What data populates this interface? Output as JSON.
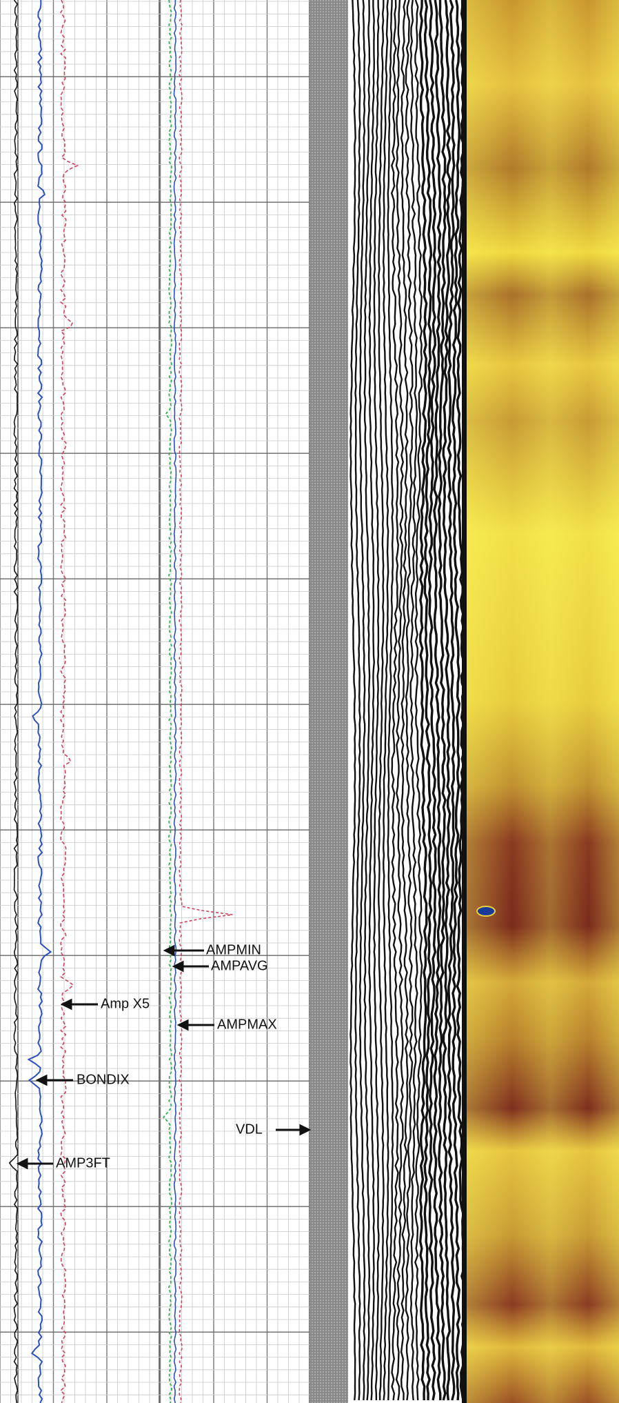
{
  "annotations": {
    "ampmin": "AMPMIN",
    "ampavg": "AMPAVG",
    "amp_x5": "Amp X5",
    "ampmax": "AMPMAX",
    "bondix": "BONDIX",
    "vdl": "VDL",
    "amp3ft": "AMP3FT"
  }
}
